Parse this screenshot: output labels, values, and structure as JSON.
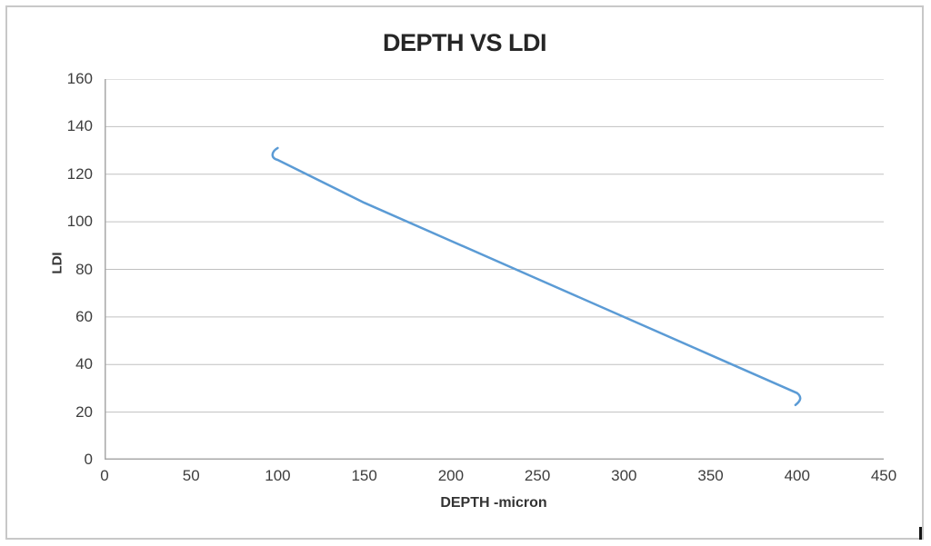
{
  "window": {
    "background": "#ffffff",
    "border_color": "#c8c8c8"
  },
  "chart_data": {
    "type": "line",
    "title": "DEPTH VS LDI",
    "xlabel": "DEPTH -micron",
    "ylabel": "LDI",
    "xlim": [
      0,
      450
    ],
    "ylim": [
      0,
      160
    ],
    "xticks": [
      0,
      50,
      100,
      150,
      200,
      250,
      300,
      350,
      400,
      450
    ],
    "yticks": [
      0,
      20,
      40,
      60,
      80,
      100,
      120,
      140,
      160
    ],
    "grid": "horizontal-only",
    "legend": "none",
    "colors": {
      "line": "#5B9BD5",
      "gridline": "#c0c0c0",
      "axis_line": "#a8a8a8",
      "tick_text": "#3d3d3d",
      "title_text": "#262626"
    },
    "series": [
      {
        "name": "LDI",
        "style": "smooth line, no markers, small curled hooks at both ends",
        "points": [
          [
            100,
            126
          ],
          [
            150,
            108
          ],
          [
            200,
            92
          ],
          [
            250,
            76
          ],
          [
            300,
            60
          ],
          [
            350,
            44
          ],
          [
            400,
            28
          ]
        ],
        "start_curl_tip": [
          100,
          131
        ],
        "end_curl_tip": [
          399,
          23
        ]
      }
    ]
  },
  "artifacts": {
    "text_cursor_visible": true
  }
}
